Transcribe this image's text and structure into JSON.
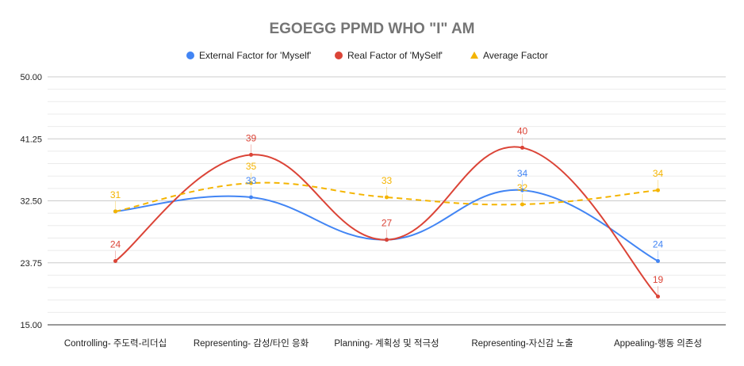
{
  "chart_data": {
    "type": "line",
    "title": "EGOEGG PPMD WHO \"I\" AM",
    "categories": [
      "Controlling- 주도력-리더십",
      "Representing- 감성/타인 응화",
      "Planning- 계획성 및 적극성",
      "Representing-자신감 노출",
      "Appealing-행동 의존성"
    ],
    "ylim": [
      15,
      50
    ],
    "y_ticks": [
      "15.00",
      "23.75",
      "32.50",
      "41.25",
      "50.00"
    ],
    "grid": true,
    "legend_position": "top-center",
    "series": [
      {
        "name": "External Factor for 'Myself'",
        "values": [
          31,
          33,
          27,
          34,
          24
        ],
        "labels": [
          "",
          "33",
          "",
          "34",
          "24"
        ],
        "color": "#4285f4",
        "style": "solid"
      },
      {
        "name": "Real Factor of 'MySelf'",
        "values": [
          24,
          39,
          27,
          40,
          19
        ],
        "labels": [
          "24",
          "39",
          "27",
          "40",
          "19"
        ],
        "color": "#db4437",
        "style": "solid"
      },
      {
        "name": "Average Factor",
        "values": [
          31,
          35,
          33,
          32,
          34
        ],
        "labels": [
          "31",
          "35",
          "33",
          "32",
          "34"
        ],
        "color": "#f4b400",
        "style": "dashed"
      }
    ]
  }
}
